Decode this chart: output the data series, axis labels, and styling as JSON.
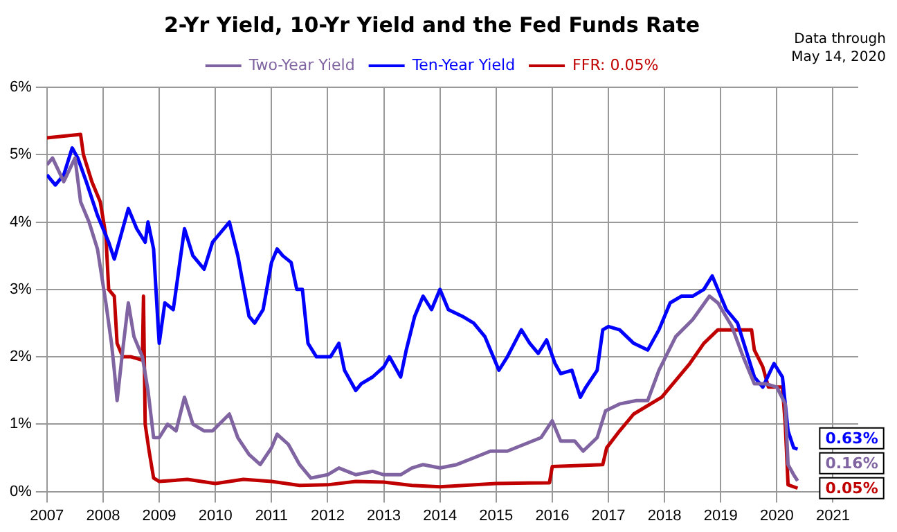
{
  "chart_data": {
    "type": "line",
    "title": "2-Yr Yield, 10-Yr Yield and the Fed Funds Rate",
    "annotations": [
      "Data through May 14, 2020"
    ],
    "xlim": [
      2007,
      2021.45
    ],
    "xticks": [
      2007,
      2008,
      2009,
      2010,
      2011,
      2012,
      2013,
      2014,
      2015,
      2016,
      2017,
      2018,
      2019,
      2020,
      2021
    ],
    "ylim": [
      0,
      6
    ],
    "yticks": [
      {
        "value": 0,
        "label": "0%"
      },
      {
        "value": 1,
        "label": "1%"
      },
      {
        "value": 2,
        "label": "2%"
      },
      {
        "value": 3,
        "label": "3%"
      },
      {
        "value": 4,
        "label": "4%"
      },
      {
        "value": 5,
        "label": "5%"
      },
      {
        "value": 6,
        "label": "6%"
      }
    ],
    "grid": true,
    "legend": "top",
    "marker": "none",
    "line_style": "solid",
    "series": [
      {
        "name": "Two-Year Yield",
        "color": "#8064a2",
        "x": [
          2007.0,
          2007.1,
          2007.3,
          2007.5,
          2007.6,
          2007.75,
          2007.9,
          2008.05,
          2008.15,
          2008.2,
          2008.25,
          2008.35,
          2008.45,
          2008.55,
          2008.7,
          2008.8,
          2008.9,
          2009.0,
          2009.15,
          2009.3,
          2009.45,
          2009.6,
          2009.8,
          2009.95,
          2010.25,
          2010.4,
          2010.6,
          2010.8,
          2011.0,
          2011.1,
          2011.3,
          2011.5,
          2011.7,
          2012.0,
          2012.2,
          2012.5,
          2012.8,
          2013.0,
          2013.3,
          2013.5,
          2013.7,
          2014.0,
          2014.3,
          2014.6,
          2014.9,
          2015.2,
          2015.5,
          2015.8,
          2016.0,
          2016.15,
          2016.4,
          2016.55,
          2016.8,
          2016.95,
          2017.2,
          2017.5,
          2017.7,
          2017.9,
          2018.2,
          2018.5,
          2018.8,
          2018.95,
          2019.2,
          2019.4,
          2019.6,
          2019.8,
          2020.0,
          2020.15,
          2020.2,
          2020.3,
          2020.37
        ],
        "values": [
          4.85,
          4.95,
          4.6,
          4.95,
          4.3,
          4.0,
          3.6,
          2.8,
          2.2,
          1.8,
          1.35,
          2.1,
          2.8,
          2.3,
          2.0,
          1.5,
          0.8,
          0.8,
          1.0,
          0.9,
          1.4,
          1.0,
          0.9,
          0.9,
          1.15,
          0.8,
          0.55,
          0.4,
          0.65,
          0.85,
          0.7,
          0.4,
          0.2,
          0.25,
          0.35,
          0.25,
          0.3,
          0.25,
          0.25,
          0.35,
          0.4,
          0.35,
          0.4,
          0.5,
          0.6,
          0.6,
          0.7,
          0.8,
          1.05,
          0.75,
          0.75,
          0.6,
          0.8,
          1.2,
          1.3,
          1.35,
          1.35,
          1.8,
          2.3,
          2.55,
          2.9,
          2.8,
          2.45,
          2.0,
          1.6,
          1.6,
          1.55,
          1.3,
          0.4,
          0.25,
          0.16
        ],
        "value_labels": [
          null,
          null,
          null,
          null,
          null,
          null,
          null,
          null,
          null,
          null,
          null,
          null,
          null,
          null,
          null,
          null,
          null,
          null,
          null,
          null,
          null,
          null,
          null,
          null,
          null,
          null,
          null,
          null,
          null,
          null,
          null,
          null,
          null,
          null,
          null,
          null,
          null,
          null,
          null,
          null,
          null,
          null,
          null,
          null,
          null,
          null,
          null,
          null,
          null,
          null,
          null,
          null,
          null,
          null,
          null,
          null,
          null,
          null,
          null,
          null,
          null,
          null,
          null,
          null,
          null,
          null,
          null,
          null,
          null,
          null,
          "0.16%"
        ]
      },
      {
        "name": "Ten-Year Yield",
        "color": "#0000ff",
        "x": [
          2007.0,
          2007.15,
          2007.3,
          2007.45,
          2007.55,
          2007.7,
          2007.9,
          2008.1,
          2008.2,
          2008.35,
          2008.45,
          2008.6,
          2008.75,
          2008.8,
          2008.9,
          2008.97,
          2009.0,
          2009.1,
          2009.25,
          2009.45,
          2009.6,
          2009.8,
          2009.95,
          2010.05,
          2010.25,
          2010.4,
          2010.6,
          2010.7,
          2010.85,
          2011.0,
          2011.1,
          2011.2,
          2011.35,
          2011.45,
          2011.55,
          2011.65,
          2011.8,
          2011.9,
          2012.05,
          2012.2,
          2012.3,
          2012.5,
          2012.6,
          2012.8,
          2013.0,
          2013.1,
          2013.3,
          2013.4,
          2013.55,
          2013.7,
          2013.85,
          2014.0,
          2014.15,
          2014.4,
          2014.6,
          2014.8,
          2015.05,
          2015.2,
          2015.45,
          2015.6,
          2015.75,
          2015.9,
          2016.05,
          2016.15,
          2016.35,
          2016.5,
          2016.6,
          2016.8,
          2016.9,
          2017.0,
          2017.2,
          2017.45,
          2017.7,
          2017.9,
          2018.1,
          2018.3,
          2018.5,
          2018.7,
          2018.85,
          2018.95,
          2019.1,
          2019.3,
          2019.45,
          2019.6,
          2019.75,
          2019.95,
          2020.1,
          2020.2,
          2020.3,
          2020.37
        ],
        "values": [
          4.7,
          4.55,
          4.7,
          5.1,
          4.95,
          4.6,
          4.1,
          3.7,
          3.45,
          3.9,
          4.2,
          3.9,
          3.7,
          4.0,
          3.6,
          2.6,
          2.2,
          2.8,
          2.7,
          3.9,
          3.5,
          3.3,
          3.7,
          3.8,
          4.0,
          3.5,
          2.6,
          2.5,
          2.7,
          3.4,
          3.6,
          3.5,
          3.4,
          3.0,
          3.0,
          2.2,
          2.0,
          2.0,
          2.0,
          2.2,
          1.8,
          1.5,
          1.6,
          1.7,
          1.85,
          2.0,
          1.7,
          2.1,
          2.6,
          2.9,
          2.7,
          3.0,
          2.7,
          2.6,
          2.5,
          2.3,
          1.8,
          2.0,
          2.4,
          2.2,
          2.05,
          2.25,
          1.9,
          1.75,
          1.8,
          1.4,
          1.55,
          1.8,
          2.4,
          2.45,
          2.4,
          2.2,
          2.1,
          2.4,
          2.8,
          2.9,
          2.9,
          3.0,
          3.2,
          3.0,
          2.7,
          2.5,
          2.1,
          1.7,
          1.55,
          1.9,
          1.7,
          0.9,
          0.65,
          0.63
        ],
        "value_labels": [
          null,
          null,
          null,
          null,
          null,
          null,
          null,
          null,
          null,
          null,
          null,
          null,
          null,
          null,
          null,
          null,
          null,
          null,
          null,
          null,
          null,
          null,
          null,
          null,
          null,
          null,
          null,
          null,
          null,
          null,
          null,
          null,
          null,
          null,
          null,
          null,
          null,
          null,
          null,
          null,
          null,
          null,
          null,
          null,
          null,
          null,
          null,
          null,
          null,
          null,
          null,
          null,
          null,
          null,
          null,
          null,
          null,
          null,
          null,
          null,
          null,
          null,
          null,
          null,
          null,
          null,
          null,
          null,
          null,
          null,
          null,
          null,
          null,
          null,
          null,
          null,
          null,
          null,
          null,
          null,
          null,
          null,
          null,
          null,
          null,
          null,
          null,
          null,
          null,
          "0.63%"
        ]
      },
      {
        "name": "FFR: 0.05%",
        "color": "#c00000",
        "x": [
          2007.0,
          2007.6,
          2007.65,
          2007.8,
          2007.95,
          2008.05,
          2008.1,
          2008.2,
          2008.25,
          2008.35,
          2008.5,
          2008.7,
          2008.72,
          2008.75,
          2008.82,
          2008.9,
          2009.0,
          2009.5,
          2010.0,
          2010.5,
          2011.0,
          2011.5,
          2012.0,
          2012.5,
          2013.0,
          2013.5,
          2014.0,
          2015.0,
          2015.95,
          2016.0,
          2016.9,
          2016.97,
          2017.2,
          2017.45,
          2017.95,
          2018.2,
          2018.45,
          2018.7,
          2018.95,
          2019.55,
          2019.6,
          2019.75,
          2019.85,
          2020.1,
          2020.15,
          2020.2,
          2020.37
        ],
        "values": [
          5.25,
          5.3,
          5.0,
          4.6,
          4.3,
          3.8,
          3.0,
          2.9,
          2.2,
          2.0,
          2.0,
          1.95,
          2.9,
          1.0,
          0.6,
          0.2,
          0.15,
          0.18,
          0.12,
          0.18,
          0.15,
          0.09,
          0.1,
          0.15,
          0.14,
          0.09,
          0.07,
          0.12,
          0.13,
          0.37,
          0.4,
          0.65,
          0.9,
          1.15,
          1.4,
          1.65,
          1.9,
          2.2,
          2.4,
          2.4,
          2.1,
          1.85,
          1.55,
          1.55,
          1.0,
          0.1,
          0.05
        ],
        "value_labels": [
          null,
          null,
          null,
          null,
          null,
          null,
          null,
          null,
          null,
          null,
          null,
          null,
          null,
          null,
          null,
          null,
          null,
          null,
          null,
          null,
          null,
          null,
          null,
          null,
          null,
          null,
          null,
          null,
          null,
          null,
          null,
          null,
          null,
          null,
          null,
          null,
          null,
          null,
          null,
          null,
          null,
          null,
          null,
          null,
          null,
          null,
          "0.05%"
        ]
      }
    ]
  }
}
